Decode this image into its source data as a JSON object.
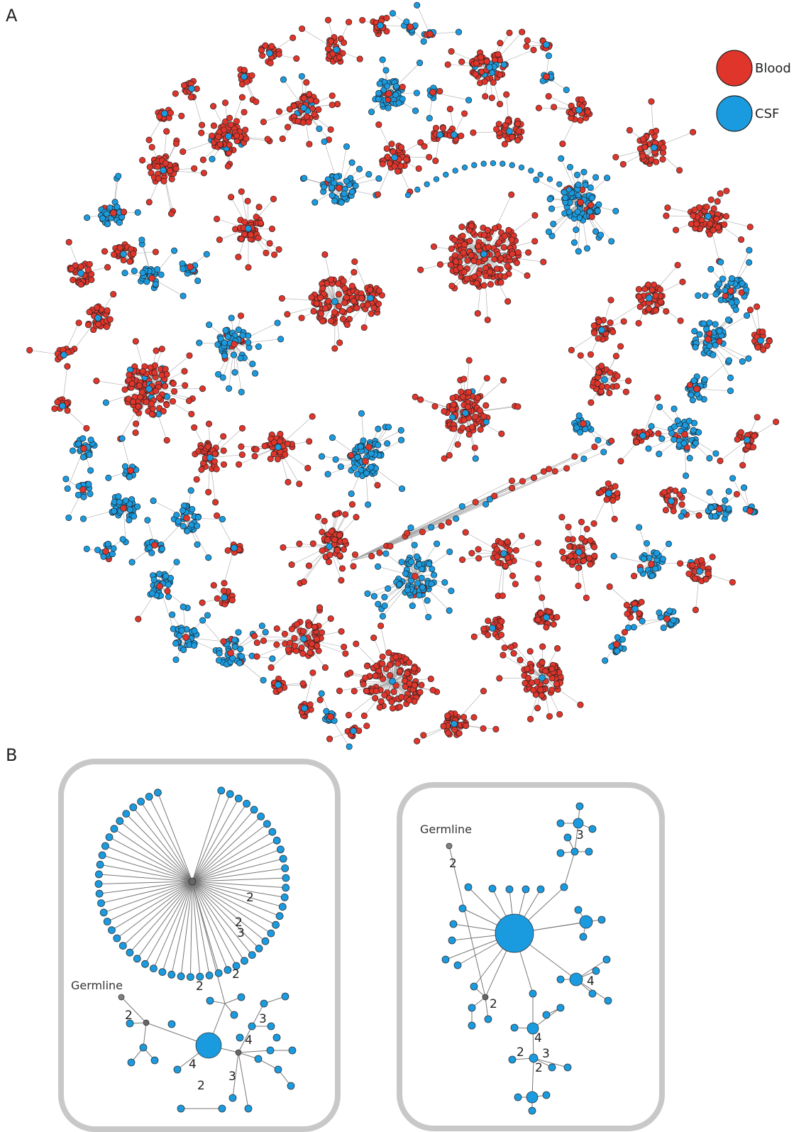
{
  "panels": {
    "a": "A",
    "b": "B"
  },
  "legend": [
    {
      "label": "Blood",
      "color": "#e0352b"
    },
    {
      "label": "CSF",
      "color": "#1a9be0"
    }
  ],
  "colors": {
    "blood": "#e0352b",
    "csf": "#1a9be0",
    "germline": "#808080",
    "inferred": "#666666",
    "edge": "#9a9a9a",
    "box": "#c8c8c8"
  },
  "germline_label": "Germline",
  "tree1_edge_labels": [
    "2",
    "2",
    "3",
    "2",
    "2",
    "2",
    "3",
    "4",
    "4",
    "3",
    "2"
  ],
  "tree2_edge_labels": [
    "3",
    "2",
    "4",
    "2",
    "4",
    "2",
    "3",
    "2"
  ]
}
